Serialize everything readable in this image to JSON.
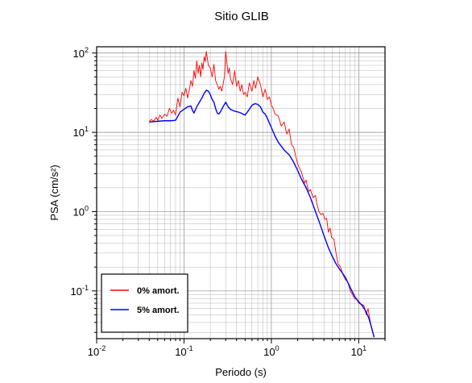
{
  "chart_data": {
    "type": "line",
    "title": "Sitio GLIB",
    "xlabel": "Periodo (s)",
    "ylabel": "PSA (cm/s²)",
    "xscale": "log",
    "yscale": "log",
    "xlim": [
      0.01,
      20
    ],
    "ylim": [
      0.025,
      120
    ],
    "grid": true,
    "legend_placement": "bottom-left",
    "x_ticks": [
      {
        "base": "10",
        "exp": "-2",
        "value": 0.01
      },
      {
        "base": "10",
        "exp": "-1",
        "value": 0.1
      },
      {
        "base": "10",
        "exp": "0",
        "value": 1
      },
      {
        "base": "10",
        "exp": "1",
        "value": 10
      }
    ],
    "y_ticks": [
      {
        "base": "10",
        "exp": "-1",
        "value": 0.1
      },
      {
        "base": "10",
        "exp": "0",
        "value": 1
      },
      {
        "base": "10",
        "exp": "1",
        "value": 10
      },
      {
        "base": "10",
        "exp": "2",
        "value": 100
      }
    ],
    "series": [
      {
        "name": "0% amort.",
        "color": "#ff0000",
        "points": [
          [
            0.04,
            13.5
          ],
          [
            0.042,
            14.5
          ],
          [
            0.045,
            13.8
          ],
          [
            0.048,
            15.5
          ],
          [
            0.05,
            14.2
          ],
          [
            0.053,
            16.5
          ],
          [
            0.056,
            15.0
          ],
          [
            0.06,
            17.0
          ],
          [
            0.064,
            16.0
          ],
          [
            0.068,
            20.0
          ],
          [
            0.072,
            17.5
          ],
          [
            0.076,
            19.0
          ],
          [
            0.08,
            16.5
          ],
          [
            0.085,
            27.0
          ],
          [
            0.09,
            21.0
          ],
          [
            0.095,
            32.0
          ],
          [
            0.1,
            29.0
          ],
          [
            0.105,
            36.0
          ],
          [
            0.11,
            27.0
          ],
          [
            0.115,
            34.0
          ],
          [
            0.12,
            45.0
          ],
          [
            0.125,
            38.0
          ],
          [
            0.13,
            60.0
          ],
          [
            0.135,
            48.0
          ],
          [
            0.14,
            80.0
          ],
          [
            0.145,
            55.0
          ],
          [
            0.15,
            70.0
          ],
          [
            0.155,
            50.0
          ],
          [
            0.16,
            75.0
          ],
          [
            0.165,
            62.0
          ],
          [
            0.17,
            90.0
          ],
          [
            0.175,
            78.0
          ],
          [
            0.18,
            105.0
          ],
          [
            0.19,
            70.0
          ],
          [
            0.2,
            65.0
          ],
          [
            0.21,
            50.0
          ],
          [
            0.22,
            72.0
          ],
          [
            0.23,
            45.0
          ],
          [
            0.24,
            40.0
          ],
          [
            0.25,
            35.0
          ],
          [
            0.26,
            38.0
          ],
          [
            0.27,
            33.0
          ],
          [
            0.28,
            40.0
          ],
          [
            0.29,
            50.0
          ],
          [
            0.3,
            105.0
          ],
          [
            0.31,
            75.0
          ],
          [
            0.32,
            55.0
          ],
          [
            0.33,
            65.0
          ],
          [
            0.34,
            48.0
          ],
          [
            0.36,
            40.0
          ],
          [
            0.38,
            60.0
          ],
          [
            0.4,
            38.0
          ],
          [
            0.42,
            45.0
          ],
          [
            0.44,
            33.0
          ],
          [
            0.46,
            40.0
          ],
          [
            0.48,
            30.0
          ],
          [
            0.5,
            32.0
          ],
          [
            0.53,
            28.0
          ],
          [
            0.56,
            42.0
          ],
          [
            0.6,
            33.0
          ],
          [
            0.63,
            45.0
          ],
          [
            0.66,
            36.0
          ],
          [
            0.7,
            50.0
          ],
          [
            0.75,
            40.0
          ],
          [
            0.8,
            28.0
          ],
          [
            0.85,
            35.0
          ],
          [
            0.9,
            26.0
          ],
          [
            0.95,
            28.0
          ],
          [
            1.0,
            22.0
          ],
          [
            1.05,
            20.0
          ],
          [
            1.1,
            17.0
          ],
          [
            1.2,
            16.0
          ],
          [
            1.3,
            12.0
          ],
          [
            1.4,
            13.5
          ],
          [
            1.5,
            9.5
          ],
          [
            1.6,
            11.0
          ],
          [
            1.7,
            7.0
          ],
          [
            1.8,
            6.5
          ],
          [
            1.9,
            5.0
          ],
          [
            2.0,
            4.0
          ],
          [
            2.1,
            3.5
          ],
          [
            2.2,
            3.2
          ],
          [
            2.3,
            2.7
          ],
          [
            2.4,
            2.3
          ],
          [
            2.5,
            2.5
          ],
          [
            2.6,
            2.0
          ],
          [
            2.7,
            1.8
          ],
          [
            2.8,
            1.9
          ],
          [
            3.0,
            1.5
          ],
          [
            3.2,
            1.6
          ],
          [
            3.3,
            1.3
          ],
          [
            3.5,
            1.0
          ],
          [
            3.7,
            0.92
          ],
          [
            3.9,
            0.95
          ],
          [
            4.1,
            0.8
          ],
          [
            4.3,
            0.82
          ],
          [
            4.5,
            0.55
          ],
          [
            4.7,
            0.62
          ],
          [
            4.9,
            0.47
          ],
          [
            5.2,
            0.45
          ],
          [
            5.5,
            0.3
          ],
          [
            5.8,
            0.22
          ],
          [
            6.2,
            0.2
          ],
          [
            6.6,
            0.16
          ],
          [
            7.0,
            0.14
          ],
          [
            7.5,
            0.13
          ],
          [
            8.0,
            0.1
          ],
          [
            8.5,
            0.09
          ],
          [
            9.0,
            0.08
          ],
          [
            9.5,
            0.078
          ],
          [
            10.0,
            0.07
          ],
          [
            10.8,
            0.068
          ],
          [
            11.5,
            0.065
          ],
          [
            12.2,
            0.05
          ],
          [
            12.8,
            0.06
          ],
          [
            13.5,
            0.042
          ],
          [
            14.2,
            0.032
          ],
          [
            15.0,
            0.027
          ]
        ]
      },
      {
        "name": "5% amort.",
        "color": "#0000ff",
        "points": [
          [
            0.04,
            13.5
          ],
          [
            0.05,
            13.8
          ],
          [
            0.06,
            14.0
          ],
          [
            0.07,
            14.0
          ],
          [
            0.08,
            14.2
          ],
          [
            0.085,
            16.0
          ],
          [
            0.09,
            18.0
          ],
          [
            0.1,
            19.5
          ],
          [
            0.11,
            21.0
          ],
          [
            0.12,
            21.5
          ],
          [
            0.125,
            19.0
          ],
          [
            0.13,
            17.5
          ],
          [
            0.14,
            21.0
          ],
          [
            0.15,
            24.0
          ],
          [
            0.16,
            27.0
          ],
          [
            0.17,
            31.0
          ],
          [
            0.18,
            34.0
          ],
          [
            0.19,
            33.0
          ],
          [
            0.2,
            30.0
          ],
          [
            0.21,
            26.0
          ],
          [
            0.22,
            24.0
          ],
          [
            0.23,
            20.0
          ],
          [
            0.24,
            17.5
          ],
          [
            0.25,
            17.0
          ],
          [
            0.26,
            18.0
          ],
          [
            0.28,
            21.0
          ],
          [
            0.3,
            24.0
          ],
          [
            0.32,
            21.0
          ],
          [
            0.34,
            19.5
          ],
          [
            0.38,
            18.5
          ],
          [
            0.42,
            18.0
          ],
          [
            0.45,
            17.5
          ],
          [
            0.5,
            16.5
          ],
          [
            0.55,
            19.0
          ],
          [
            0.6,
            22.0
          ],
          [
            0.65,
            23.0
          ],
          [
            0.7,
            22.5
          ],
          [
            0.75,
            21.0
          ],
          [
            0.8,
            18.0
          ],
          [
            0.85,
            17.0
          ],
          [
            0.9,
            15.0
          ],
          [
            1.0,
            11.5
          ],
          [
            1.1,
            9.0
          ],
          [
            1.2,
            7.5
          ],
          [
            1.4,
            6.0
          ],
          [
            1.6,
            5.2
          ],
          [
            1.8,
            4.2
          ],
          [
            2.0,
            3.3
          ],
          [
            2.2,
            2.6
          ],
          [
            2.5,
            2.0
          ],
          [
            2.8,
            1.5
          ],
          [
            3.2,
            1.0
          ],
          [
            3.6,
            0.7
          ],
          [
            4.0,
            0.5
          ],
          [
            4.5,
            0.35
          ],
          [
            5.0,
            0.27
          ],
          [
            5.5,
            0.22
          ],
          [
            6.0,
            0.19
          ],
          [
            7.0,
            0.15
          ],
          [
            8.0,
            0.11
          ],
          [
            9.0,
            0.085
          ],
          [
            10.0,
            0.073
          ],
          [
            11.0,
            0.065
          ],
          [
            12.0,
            0.056
          ],
          [
            13.0,
            0.046
          ],
          [
            14.0,
            0.035
          ],
          [
            15.0,
            0.026
          ]
        ]
      }
    ]
  }
}
